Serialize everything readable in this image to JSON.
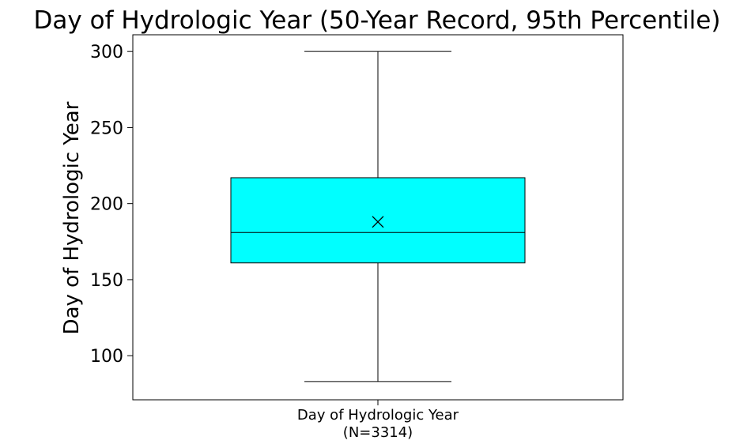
{
  "chart_data": {
    "type": "box",
    "title": "Day of Hydrologic Year (50-Year Record, 95th Percentile)",
    "ylabel": "Day of Hydrologic Year",
    "xlabel": "",
    "categories": [
      "Day of Hydrologic Year\n(N=3314)"
    ],
    "category_lines": [
      "Day of Hydrologic Year",
      "(N=3314)"
    ],
    "ylim": [
      71,
      311
    ],
    "yticks": [
      100,
      150,
      200,
      250,
      300
    ],
    "grid": false,
    "legend": false,
    "boxes": [
      {
        "whisker_low": 83,
        "q1": 161,
        "median": 181,
        "q3": 217,
        "whisker_high": 300,
        "mean": 188,
        "mean_marker": "x",
        "fill": "#00ffff"
      }
    ],
    "colors": {
      "box_fill": "#00ffff",
      "line": "#000000"
    }
  }
}
